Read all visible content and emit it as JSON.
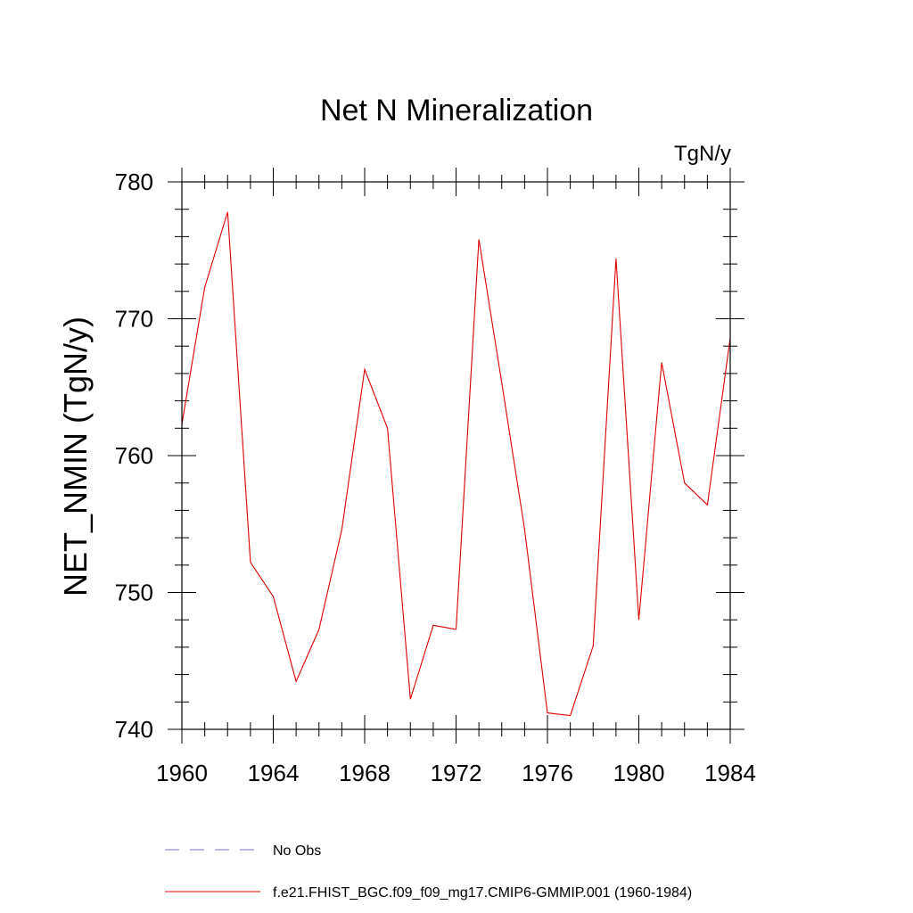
{
  "chart_data": {
    "type": "line",
    "title": "Net N Mineralization",
    "units_label": "TgN/y",
    "xlabel": "",
    "ylabel": "NET_NMIN  (TgN/y)",
    "xlim": [
      1960,
      1984
    ],
    "ylim": [
      740,
      780
    ],
    "x_major_ticks": [
      1960,
      1964,
      1968,
      1972,
      1976,
      1980,
      1984
    ],
    "x_tick_labels": [
      "1960",
      "1964",
      "1968",
      "1972",
      "1976",
      "1980",
      "1984"
    ],
    "x_minor_step": 1,
    "y_major_ticks": [
      740,
      750,
      760,
      770,
      780
    ],
    "y_tick_labels": [
      "740",
      "750",
      "760",
      "770",
      "780"
    ],
    "y_minor_step": 2,
    "grid": false,
    "legend_position": "bottom-left",
    "legend": [
      {
        "label": "No Obs",
        "color": "#7070c0",
        "style": "dashed"
      },
      {
        "label": "f.e21.FHIST_BGC.f09_f09_mg17.CMIP6-GMMIP.001 (1960-1984)",
        "color": "#e00000",
        "style": "solid"
      }
    ],
    "series": [
      {
        "name": "f.e21.FHIST_BGC.f09_f09_mg17.CMIP6-GMMIP.001 (1960-1984)",
        "color": "#e00000",
        "x": [
          1960,
          1961,
          1962,
          1963,
          1964,
          1965,
          1966,
          1967,
          1968,
          1969,
          1970,
          1971,
          1972,
          1973,
          1974,
          1975,
          1976,
          1977,
          1978,
          1979,
          1980,
          1981,
          1982,
          1983,
          1984
        ],
        "y": [
          762.3,
          772.3,
          777.8,
          752.2,
          749.7,
          743.5,
          747.3,
          754.6,
          766.3,
          762.0,
          742.2,
          747.6,
          747.3,
          775.8,
          765.3,
          754.6,
          741.2,
          741.0,
          746.1,
          774.4,
          748.0,
          766.8,
          758.0,
          756.4,
          768.6
        ]
      }
    ]
  }
}
